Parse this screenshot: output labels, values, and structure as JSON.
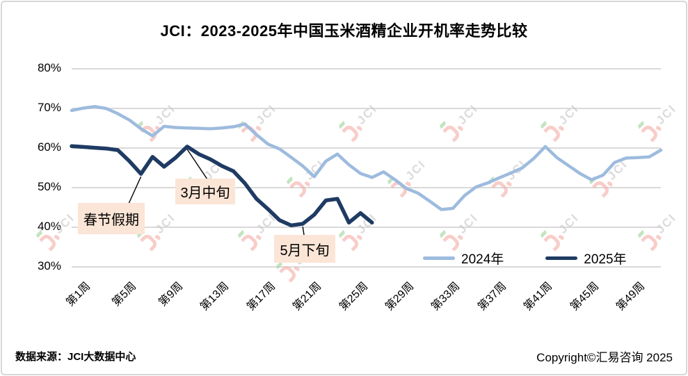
{
  "title": "JCI：2023-2025年中国玉米酒精企业开机率走势比较",
  "footer": {
    "source": "数据来源：JCI大数据中心",
    "copyright": "Copyright©汇易咨询 2025"
  },
  "watermark": {
    "text": "JCI"
  },
  "colors": {
    "grid": "#D9D9D9",
    "annotation_bg": "#FBE5D6",
    "watermark_pink": "#F4AFA9",
    "watermark_gray": "#C6C6C6",
    "watermark_green": "#9FD49B",
    "series_2024": "#9DBBDE",
    "series_2025": "#1F3B63"
  },
  "chart_data": {
    "type": "line",
    "title": "JCI：2023-2025年中国玉米酒精企业开机率走势比较",
    "grid": true,
    "legend_position": "bottom-right-inside",
    "x_axis": {
      "range": [
        1,
        52
      ],
      "unit": "周",
      "tick_weeks": [
        1,
        5,
        9,
        13,
        17,
        21,
        25,
        29,
        33,
        37,
        41,
        45,
        49
      ],
      "tick_labels": [
        "第1周",
        "第5周",
        "第9周",
        "第13周",
        "第17周",
        "第21周",
        "第25周",
        "第29周",
        "第33周",
        "第37周",
        "第41周",
        "第45周",
        "第49周"
      ]
    },
    "y_axis": {
      "range": [
        30,
        80
      ],
      "unit": "%",
      "tick_values": [
        80,
        70,
        60,
        50,
        40,
        30
      ],
      "tick_labels": [
        "80%",
        "70%",
        "60%",
        "50%",
        "40%",
        "30%"
      ]
    },
    "series": [
      {
        "name": "2024年",
        "color": "#9DBBDE",
        "start_week": 1,
        "values": [
          69.3,
          69.9,
          70.3,
          69.8,
          68.5,
          66.9,
          64.7,
          62.9,
          65.3,
          65.0,
          64.9,
          64.8,
          64.7,
          64.9,
          65.2,
          65.9,
          63.2,
          60.8,
          59.6,
          57.5,
          55.3,
          52.6,
          56.5,
          58.3,
          55.6,
          53.4,
          52.4,
          53.8,
          51.8,
          49.6,
          48.4,
          46.4,
          44.3,
          44.6,
          47.8,
          50.0,
          51.0,
          52.3,
          53.5,
          54.8,
          57.2,
          60.2,
          57.4,
          55.4,
          53.4,
          51.8,
          53.0,
          56.2,
          57.3,
          57.4,
          57.6,
          59.3
        ]
      },
      {
        "name": "2025年",
        "color": "#1F3B63",
        "start_week": 1,
        "values": [
          60.3,
          60.1,
          59.9,
          59.7,
          59.3,
          56.5,
          53.3,
          57.6,
          55.1,
          57.4,
          60.2,
          58.3,
          57.0,
          55.3,
          54.0,
          50.9,
          47.0,
          44.4,
          41.6,
          40.3,
          40.7,
          43.0,
          46.6,
          47.0,
          41.0,
          43.4,
          41.0
        ]
      }
    ],
    "annotations": [
      {
        "label": "春节假期",
        "week": 7,
        "series": "2025年"
      },
      {
        "label": "3月中旬",
        "week": 11,
        "series": "2025年"
      },
      {
        "label": "5月下旬",
        "week": 21,
        "series": "2025年"
      }
    ]
  }
}
